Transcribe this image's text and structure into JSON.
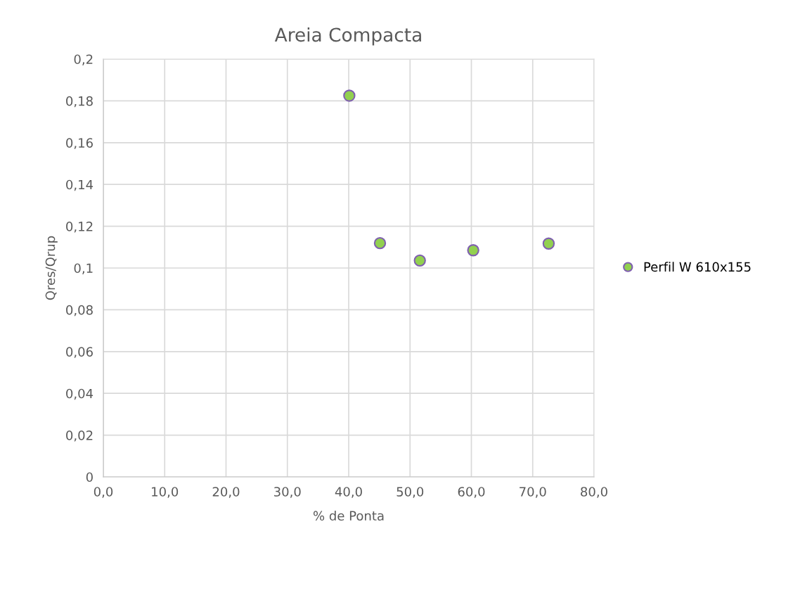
{
  "chart_data": {
    "type": "scatter",
    "title": "Areia Compacta",
    "xlabel": "% de Ponta",
    "ylabel": "Qres/Qrup",
    "series": [
      {
        "name": "Perfil W 610x155",
        "color": "#92d050",
        "x": [
          40.1,
          45.1,
          51.6,
          60.3,
          72.6
        ],
        "values": [
          0.1825,
          0.1119,
          0.1036,
          0.1085,
          0.1117
        ]
      }
    ],
    "xlim": [
      0,
      80
    ],
    "xticks": [
      {
        "value": 0,
        "label": "0,0"
      },
      {
        "value": 10,
        "label": "10,0"
      },
      {
        "value": 20,
        "label": "20,0"
      },
      {
        "value": 30,
        "label": "30,0"
      },
      {
        "value": 40,
        "label": "40,0"
      },
      {
        "value": 50,
        "label": "50,0"
      },
      {
        "value": 60,
        "label": "60,0"
      },
      {
        "value": 70,
        "label": "70,0"
      },
      {
        "value": 80,
        "label": "80,0"
      }
    ],
    "ylim": [
      0,
      0.2
    ],
    "yticks": [
      0,
      {
        "value": 0.02,
        "label": "0,02"
      },
      {
        "value": 0.04,
        "label": "0,04"
      },
      {
        "value": 0.06,
        "label": "0,06"
      },
      {
        "value": 0.08,
        "label": "0,08"
      },
      {
        "value": 0.1,
        "label": "0,1"
      },
      {
        "value": 0.12,
        "label": "0,12"
      },
      {
        "value": 0.14,
        "label": "0,14"
      },
      {
        "value": 0.16,
        "label": "0,16"
      },
      {
        "value": 0.18,
        "label": "0,18"
      },
      {
        "value": 0.2,
        "label": "0,2"
      }
    ],
    "grid": true,
    "legend": "right",
    "marker": "circle"
  }
}
